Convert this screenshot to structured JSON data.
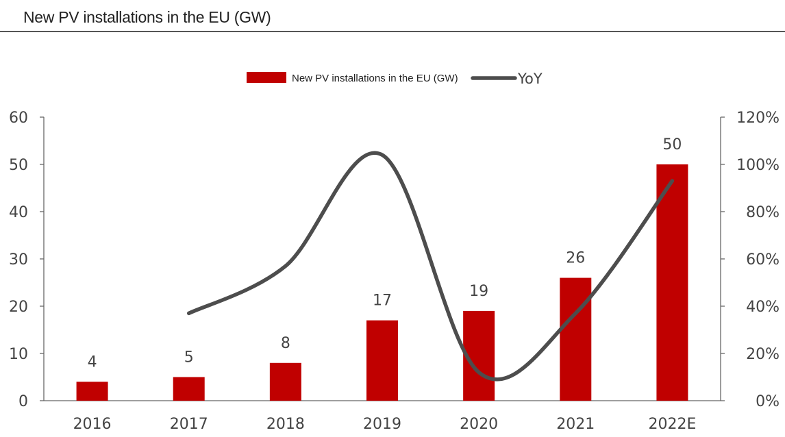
{
  "header": {
    "title": "New PV installations in the EU (GW)"
  },
  "chart_data": {
    "type": "bar",
    "categories": [
      "2016",
      "2017",
      "2018",
      "2019",
      "2020",
      "2021",
      "2022E"
    ],
    "series": [
      {
        "name": "New PV installations in the EU (GW)",
        "kind": "bar",
        "axis": "left",
        "color": "#c00000",
        "values": [
          4,
          5,
          8,
          17,
          19,
          26,
          50
        ],
        "labels": [
          "4",
          "5",
          "8",
          "17",
          "19",
          "26",
          "50"
        ]
      },
      {
        "name": "YoY",
        "kind": "line",
        "axis": "right",
        "smooth": true,
        "color": "#4d4d4d",
        "values": [
          null,
          0.37,
          0.57,
          1.04,
          0.12,
          0.37,
          0.93
        ]
      }
    ],
    "y_left": {
      "min": 0,
      "max": 60,
      "ticks": [
        "0",
        "10",
        "20",
        "30",
        "40",
        "50",
        "60"
      ]
    },
    "y_right": {
      "min": 0,
      "max": 1.2,
      "ticks": [
        "0%",
        "20%",
        "40%",
        "60%",
        "80%",
        "100%",
        "120%"
      ]
    },
    "legend": {
      "position": "top-center"
    },
    "grid": false
  }
}
